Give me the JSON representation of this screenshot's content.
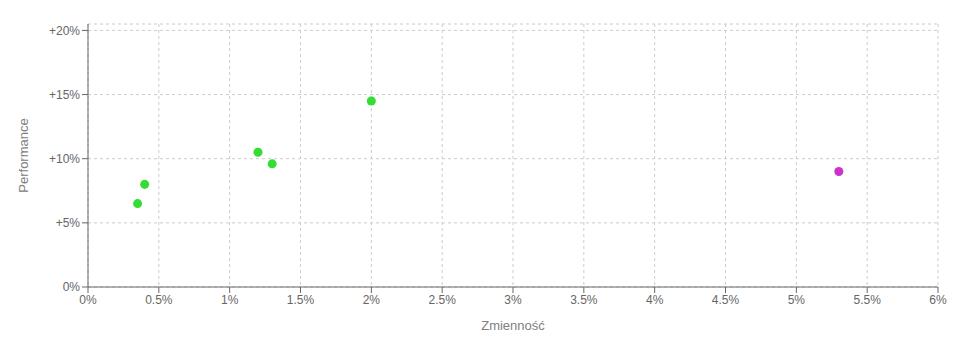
{
  "chart_data": {
    "type": "scatter",
    "xlabel": "Zmienność",
    "ylabel": "Performance",
    "series": [
      {
        "color": "#33dd33",
        "x": [
          0.004,
          0.0035,
          0.012,
          0.013,
          0.02
        ],
        "values": [
          0.08,
          0.065,
          0.105,
          0.096,
          0.145
        ]
      },
      {
        "color": "#cc33cc",
        "x": [
          0.053
        ],
        "values": [
          0.09
        ]
      }
    ],
    "xlim": [
      0.0,
      0.06
    ],
    "ylim": [
      0.0,
      0.205
    ],
    "xticks": [
      {
        "value": 0.0,
        "label": "0%"
      },
      {
        "value": 0.005,
        "label": "0.5%"
      },
      {
        "value": 0.01,
        "label": "1%"
      },
      {
        "value": 0.015,
        "label": "1.5%"
      },
      {
        "value": 0.02,
        "label": "2%"
      },
      {
        "value": 0.025,
        "label": "2.5%"
      },
      {
        "value": 0.03,
        "label": "3%"
      },
      {
        "value": 0.035,
        "label": "3.5%"
      },
      {
        "value": 0.04,
        "label": "4%"
      },
      {
        "value": 0.045,
        "label": "4.5%"
      },
      {
        "value": 0.05,
        "label": "5%"
      },
      {
        "value": 0.055,
        "label": "5.5%"
      },
      {
        "value": 0.06,
        "label": "6%"
      }
    ],
    "yticks": [
      {
        "value": 0.0,
        "label": "0%"
      },
      {
        "value": 0.05,
        "label": "+5%"
      },
      {
        "value": 0.1,
        "label": "+10%"
      },
      {
        "value": 0.15,
        "label": "+15%"
      },
      {
        "value": 0.2,
        "label": "+20%"
      }
    ],
    "grid": true
  }
}
